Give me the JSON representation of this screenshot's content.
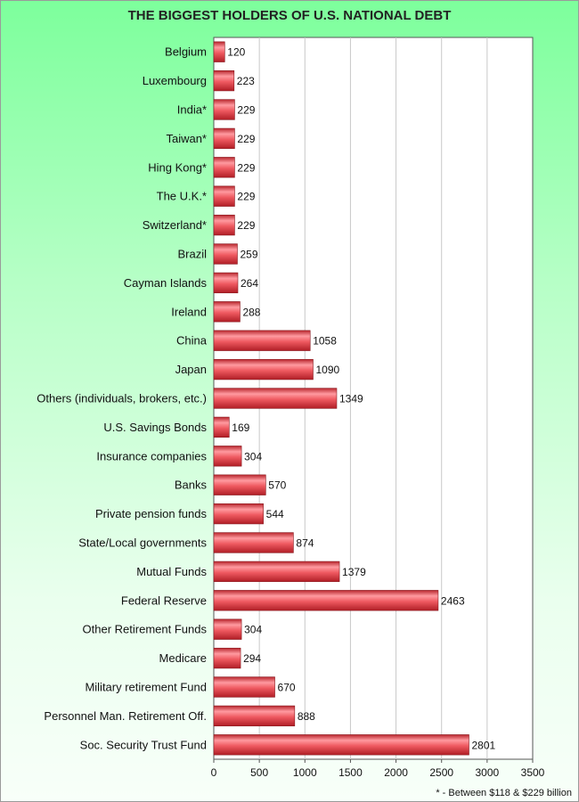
{
  "chart_data": {
    "type": "bar",
    "orientation": "horizontal",
    "title": "THE BIGGEST HOLDERS OF U.S. NATIONAL DEBT",
    "footnote": "* - Between $118 & $229 billion",
    "categories": [
      "Belgium",
      "Luxembourg",
      "India*",
      "Taiwan*",
      "Hing Kong*",
      "The U.K.*",
      "Switzerland*",
      "Brazil",
      "Cayman Islands",
      "Ireland",
      "China",
      "Japan",
      "Others (individuals, brokers, etc.)",
      "U.S. Savings Bonds",
      "Insurance companies",
      "Banks",
      "Private pension funds",
      "State/Local governments",
      "Mutual Funds",
      "Federal Reserve",
      "Other Retirement Funds",
      "Medicare",
      "Military retirement Fund",
      "Personnel Man. Retirement Off.",
      "Soc. Security Trust Fund"
    ],
    "values": [
      120,
      223,
      229,
      229,
      229,
      229,
      229,
      259,
      264,
      288,
      1058,
      1090,
      1349,
      169,
      304,
      570,
      544,
      874,
      1379,
      2463,
      304,
      294,
      670,
      888,
      2801
    ],
    "xlim": [
      0,
      3500
    ],
    "xticks": [
      0,
      500,
      1000,
      1500,
      2000,
      2500,
      3000,
      3500
    ],
    "grid": true,
    "bar_color": "#e8444c"
  }
}
